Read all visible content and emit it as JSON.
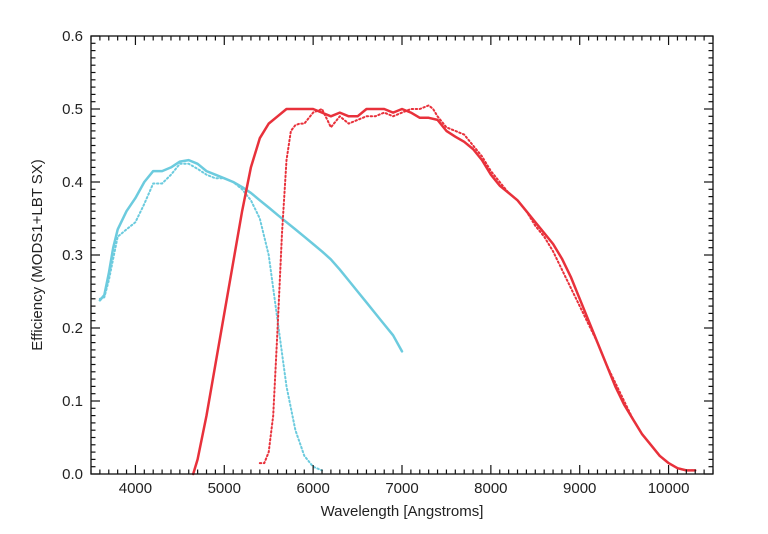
{
  "chart_data": {
    "type": "line",
    "title": "",
    "xlabel": "Wavelength [Angstroms]",
    "ylabel": "Efficiency (MODS1+LBT SX)",
    "xlim": [
      3500,
      10500
    ],
    "ylim": [
      0.0,
      0.6
    ],
    "x_major_ticks": [
      4000,
      5000,
      6000,
      7000,
      8000,
      9000,
      10000
    ],
    "y_major_ticks": [
      0.0,
      0.1,
      0.2,
      0.3,
      0.4,
      0.5,
      0.6
    ],
    "x_tick_labels": [
      "4000",
      "5000",
      "6000",
      "7000",
      "8000",
      "9000",
      "10000"
    ],
    "y_tick_labels": [
      "0.0",
      "0.1",
      "0.2",
      "0.3",
      "0.4",
      "0.5",
      "0.6"
    ],
    "grid": false,
    "legend": null,
    "series": [
      {
        "color": "#6ccbde",
        "style": "solid",
        "points": [
          [
            3600,
            0.238
          ],
          [
            3650,
            0.245
          ],
          [
            3700,
            0.275
          ],
          [
            3750,
            0.31
          ],
          [
            3800,
            0.335
          ],
          [
            3900,
            0.36
          ],
          [
            4000,
            0.378
          ],
          [
            4100,
            0.4
          ],
          [
            4200,
            0.415
          ],
          [
            4300,
            0.415
          ],
          [
            4400,
            0.42
          ],
          [
            4500,
            0.428
          ],
          [
            4600,
            0.43
          ],
          [
            4700,
            0.425
          ],
          [
            4800,
            0.415
          ],
          [
            4900,
            0.41
          ],
          [
            5000,
            0.405
          ],
          [
            5100,
            0.4
          ],
          [
            5200,
            0.393
          ],
          [
            5300,
            0.385
          ],
          [
            5400,
            0.375
          ],
          [
            5500,
            0.365
          ],
          [
            5600,
            0.355
          ],
          [
            5700,
            0.345
          ],
          [
            5800,
            0.335
          ],
          [
            5900,
            0.325
          ],
          [
            6000,
            0.315
          ],
          [
            6100,
            0.305
          ],
          [
            6200,
            0.294
          ],
          [
            6300,
            0.28
          ],
          [
            6400,
            0.265
          ],
          [
            6500,
            0.25
          ],
          [
            6600,
            0.235
          ],
          [
            6700,
            0.22
          ],
          [
            6800,
            0.205
          ],
          [
            6900,
            0.19
          ],
          [
            7000,
            0.168
          ]
        ]
      },
      {
        "color": "#6ccbde",
        "style": "dotted",
        "points": [
          [
            3600,
            0.24
          ],
          [
            3650,
            0.242
          ],
          [
            3700,
            0.265
          ],
          [
            3750,
            0.295
          ],
          [
            3800,
            0.325
          ],
          [
            3900,
            0.335
          ],
          [
            4000,
            0.345
          ],
          [
            4100,
            0.37
          ],
          [
            4200,
            0.398
          ],
          [
            4300,
            0.398
          ],
          [
            4400,
            0.41
          ],
          [
            4500,
            0.425
          ],
          [
            4600,
            0.425
          ],
          [
            4700,
            0.418
          ],
          [
            4800,
            0.41
          ],
          [
            4900,
            0.405
          ],
          [
            5000,
            0.405
          ],
          [
            5100,
            0.4
          ],
          [
            5200,
            0.39
          ],
          [
            5300,
            0.375
          ],
          [
            5400,
            0.35
          ],
          [
            5500,
            0.3
          ],
          [
            5600,
            0.21
          ],
          [
            5700,
            0.12
          ],
          [
            5800,
            0.06
          ],
          [
            5900,
            0.025
          ],
          [
            6000,
            0.01
          ],
          [
            6100,
            0.005
          ]
        ]
      },
      {
        "color": "#e8313b",
        "style": "solid",
        "points": [
          [
            4650,
            0.0
          ],
          [
            4700,
            0.02
          ],
          [
            4800,
            0.08
          ],
          [
            4900,
            0.15
          ],
          [
            5000,
            0.22
          ],
          [
            5100,
            0.29
          ],
          [
            5200,
            0.36
          ],
          [
            5300,
            0.42
          ],
          [
            5400,
            0.46
          ],
          [
            5500,
            0.48
          ],
          [
            5600,
            0.49
          ],
          [
            5700,
            0.5
          ],
          [
            5800,
            0.5
          ],
          [
            5900,
            0.5
          ],
          [
            6000,
            0.5
          ],
          [
            6100,
            0.495
          ],
          [
            6200,
            0.49
          ],
          [
            6300,
            0.495
          ],
          [
            6400,
            0.49
          ],
          [
            6500,
            0.49
          ],
          [
            6600,
            0.5
          ],
          [
            6700,
            0.5
          ],
          [
            6800,
            0.5
          ],
          [
            6900,
            0.495
          ],
          [
            7000,
            0.5
          ],
          [
            7100,
            0.495
          ],
          [
            7200,
            0.488
          ],
          [
            7300,
            0.488
          ],
          [
            7400,
            0.485
          ],
          [
            7500,
            0.47
          ],
          [
            7600,
            0.462
          ],
          [
            7700,
            0.455
          ],
          [
            7800,
            0.445
          ],
          [
            7900,
            0.43
          ],
          [
            8000,
            0.41
          ],
          [
            8100,
            0.395
          ],
          [
            8200,
            0.385
          ],
          [
            8300,
            0.375
          ],
          [
            8400,
            0.36
          ],
          [
            8500,
            0.345
          ],
          [
            8600,
            0.33
          ],
          [
            8700,
            0.315
          ],
          [
            8800,
            0.295
          ],
          [
            8900,
            0.27
          ],
          [
            9000,
            0.24
          ],
          [
            9100,
            0.21
          ],
          [
            9200,
            0.18
          ],
          [
            9300,
            0.15
          ],
          [
            9400,
            0.12
          ],
          [
            9500,
            0.095
          ],
          [
            9600,
            0.075
          ],
          [
            9700,
            0.055
          ],
          [
            9800,
            0.04
          ],
          [
            9900,
            0.025
          ],
          [
            10000,
            0.015
          ],
          [
            10100,
            0.008
          ],
          [
            10200,
            0.005
          ],
          [
            10300,
            0.005
          ]
        ]
      },
      {
        "color": "#e8313b",
        "style": "dotted",
        "points": [
          [
            5400,
            0.015
          ],
          [
            5450,
            0.015
          ],
          [
            5500,
            0.03
          ],
          [
            5550,
            0.08
          ],
          [
            5600,
            0.2
          ],
          [
            5650,
            0.33
          ],
          [
            5700,
            0.43
          ],
          [
            5750,
            0.47
          ],
          [
            5800,
            0.478
          ],
          [
            5850,
            0.48
          ],
          [
            5900,
            0.48
          ],
          [
            6000,
            0.495
          ],
          [
            6100,
            0.5
          ],
          [
            6200,
            0.475
          ],
          [
            6300,
            0.49
          ],
          [
            6400,
            0.48
          ],
          [
            6500,
            0.485
          ],
          [
            6600,
            0.49
          ],
          [
            6700,
            0.49
          ],
          [
            6800,
            0.495
          ],
          [
            6900,
            0.49
          ],
          [
            7000,
            0.495
          ],
          [
            7100,
            0.5
          ],
          [
            7200,
            0.5
          ],
          [
            7300,
            0.505
          ],
          [
            7350,
            0.5
          ],
          [
            7400,
            0.49
          ],
          [
            7500,
            0.475
          ],
          [
            7600,
            0.47
          ],
          [
            7700,
            0.465
          ],
          [
            7800,
            0.45
          ],
          [
            7900,
            0.435
          ],
          [
            8000,
            0.415
          ],
          [
            8100,
            0.4
          ],
          [
            8200,
            0.385
          ],
          [
            8300,
            0.375
          ],
          [
            8400,
            0.36
          ],
          [
            8500,
            0.34
          ],
          [
            8600,
            0.325
          ],
          [
            8700,
            0.305
          ],
          [
            8800,
            0.28
          ],
          [
            8900,
            0.255
          ],
          [
            9000,
            0.23
          ],
          [
            9100,
            0.205
          ],
          [
            9200,
            0.18
          ],
          [
            9300,
            0.15
          ],
          [
            9400,
            0.125
          ],
          [
            9500,
            0.1
          ],
          [
            9600,
            0.075
          ],
          [
            9700,
            0.055
          ],
          [
            9800,
            0.04
          ],
          [
            9900,
            0.025
          ],
          [
            10000,
            0.015
          ],
          [
            10100,
            0.008
          ],
          [
            10200,
            0.005
          ],
          [
            10300,
            0.005
          ]
        ]
      }
    ]
  }
}
